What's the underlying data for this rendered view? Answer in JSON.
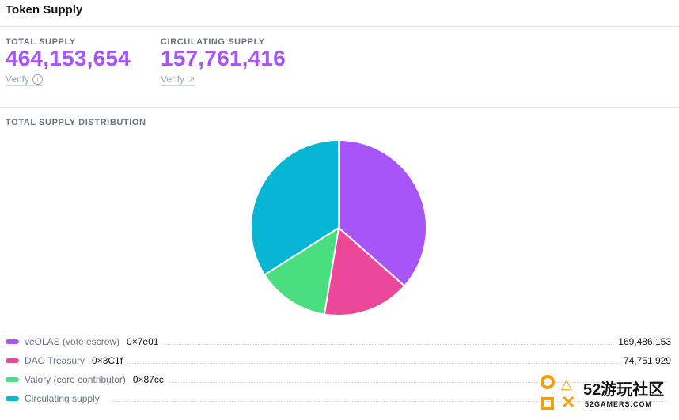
{
  "header": {
    "title": "Token Supply"
  },
  "stats": {
    "total": {
      "label": "TOTAL SUPPLY",
      "value": "464,153,654",
      "link": "Verify",
      "icon": "info-icon"
    },
    "circulating": {
      "label": "CIRCULATING SUPPLY",
      "value": "157,761,416",
      "link": "Verify",
      "icon": "arrow-up-right-icon"
    }
  },
  "distribution": {
    "title": "TOTAL SUPPLY DISTRIBUTION"
  },
  "legend": [
    {
      "name": "veOLAS (vote escrow)",
      "address": "0×7e01",
      "value": "169,486,153",
      "color": "#a855f7"
    },
    {
      "name": "DAO Treasury",
      "address": "0×3C1f",
      "value": "74,751,929",
      "color": "#ec4899"
    },
    {
      "name": "Valory (core contributor)",
      "address": "0×87cc",
      "value": "",
      "color": "#4ade80"
    },
    {
      "name": "Circulating supply",
      "address": "",
      "value": "",
      "color": "#06b6d4"
    }
  ],
  "chart_data": {
    "type": "pie",
    "categories": [
      "veOLAS (vote escrow)",
      "DAO Treasury",
      "Valory (core contributor)",
      "Circulating supply"
    ],
    "values": [
      169486153,
      74751929,
      62153656,
      157761416
    ],
    "colors": [
      "#a855f7",
      "#ec4899",
      "#4ade80",
      "#06b6d4"
    ]
  },
  "watermark": {
    "brand": "52游玩社区",
    "sub": "52GAMERS.COM"
  }
}
